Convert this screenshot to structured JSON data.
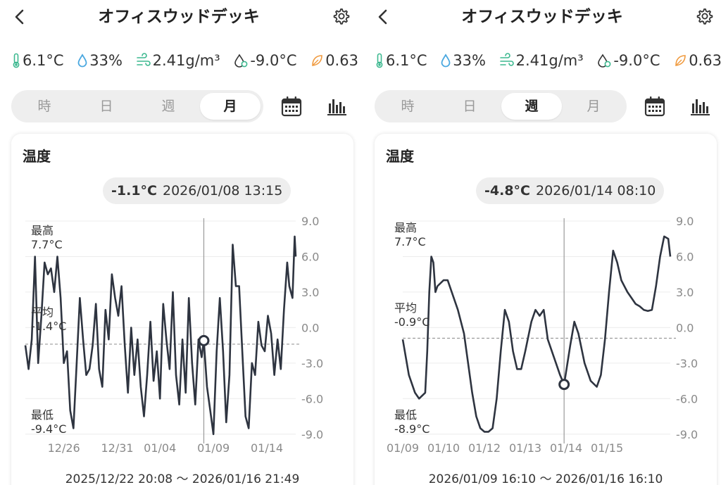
{
  "panels": [
    {
      "header": {
        "back_icon": "chevron-left-icon",
        "title": "オフィスウッドデッキ",
        "settings_icon": "gear-icon"
      },
      "metrics": [
        {
          "icon": "thermometer-icon",
          "color": "#3cb88f",
          "value": "6.1°C"
        },
        {
          "icon": "droplet-icon",
          "color": "#4aa8e0",
          "value": "33%"
        },
        {
          "icon": "humidity-wind-icon",
          "color": "#3cb88f",
          "value": "2.41g/m³"
        },
        {
          "icon": "dewpoint-icon",
          "color": "#333333",
          "value": "-9.0°C"
        },
        {
          "icon": "leaf-icon",
          "color": "#f09a3e",
          "value": "0.63"
        }
      ],
      "tabs": [
        {
          "label": "時",
          "active": false
        },
        {
          "label": "日",
          "active": false
        },
        {
          "label": "週",
          "active": false
        },
        {
          "label": "月",
          "active": true
        }
      ],
      "card": {
        "title": "温度",
        "readout": {
          "value": "-1.1°C",
          "datetime": "2026/01/08 13:15"
        },
        "stats": {
          "max_label": "最高",
          "max_value": "7.7°C",
          "avg_label": "平均",
          "avg_value": "-1.4°C",
          "min_label": "最低",
          "min_value": "-9.4°C"
        },
        "range": "2025/12/22 20:08 〜 2026/01/16 21:49"
      }
    },
    {
      "header": {
        "back_icon": "chevron-left-icon",
        "title": "オフィスウッドデッキ",
        "settings_icon": "gear-icon"
      },
      "metrics": [
        {
          "icon": "thermometer-icon",
          "color": "#3cb88f",
          "value": "6.1°C"
        },
        {
          "icon": "droplet-icon",
          "color": "#4aa8e0",
          "value": "33%"
        },
        {
          "icon": "humidity-wind-icon",
          "color": "#3cb88f",
          "value": "2.41g/m³"
        },
        {
          "icon": "dewpoint-icon",
          "color": "#333333",
          "value": "-9.0°C"
        },
        {
          "icon": "leaf-icon",
          "color": "#f09a3e",
          "value": "0.63"
        }
      ],
      "tabs": [
        {
          "label": "時",
          "active": false
        },
        {
          "label": "日",
          "active": false
        },
        {
          "label": "週",
          "active": true
        },
        {
          "label": "月",
          "active": false
        }
      ],
      "card": {
        "title": "温度",
        "readout": {
          "value": "-4.8°C",
          "datetime": "2026/01/14 08:10"
        },
        "stats": {
          "max_label": "最高",
          "max_value": "7.7°C",
          "avg_label": "平均",
          "avg_value": "-0.9°C",
          "min_label": "最低",
          "min_value": "-8.9°C"
        },
        "range": "2026/01/09 16:10 〜 2026/01/16 16:10"
      }
    }
  ],
  "chart_data": [
    {
      "type": "line",
      "ylabel": "",
      "ylim": [
        -10.5,
        9.0
      ],
      "y_ticks": [
        "9.0",
        "6.0",
        "3.0",
        "0.0",
        "-3.0",
        "-6.0",
        "-9.0"
      ],
      "y_tick_values": [
        9,
        6,
        3,
        0,
        -3,
        -6,
        -9
      ],
      "y_axis_side": "right",
      "x_range": [
        "2025/12/22 20:08",
        "2026/01/16 21:49"
      ],
      "x_ticks": [
        {
          "label": "12/26",
          "t": 3.6
        },
        {
          "label": "12/31",
          "t": 8.6
        },
        {
          "label": "01/04",
          "t": 12.6
        },
        {
          "label": "01/09",
          "t": 17.6
        },
        {
          "label": "01/14",
          "t": 22.6
        }
      ],
      "average": -1.4,
      "marker": {
        "t": 16.7,
        "value": -1.1
      },
      "series": [
        {
          "color": "#2e3440",
          "points": [
            [
              0.0,
              -1.5
            ],
            [
              0.3,
              -3.5
            ],
            [
              0.6,
              -1.0
            ],
            [
              0.9,
              6.0
            ],
            [
              1.2,
              -3.0
            ],
            [
              1.5,
              1.0
            ],
            [
              1.8,
              5.5
            ],
            [
              2.1,
              4.5
            ],
            [
              2.4,
              5.0
            ],
            [
              2.7,
              3.0
            ],
            [
              3.0,
              6.0
            ],
            [
              3.3,
              2.5
            ],
            [
              3.6,
              -3.0
            ],
            [
              3.9,
              -2.0
            ],
            [
              4.2,
              -7.0
            ],
            [
              4.5,
              -8.5
            ],
            [
              4.8,
              -3.0
            ],
            [
              5.1,
              2.5
            ],
            [
              5.4,
              -1.0
            ],
            [
              5.7,
              -4.0
            ],
            [
              6.0,
              -3.5
            ],
            [
              6.3,
              -1.5
            ],
            [
              6.6,
              2.0
            ],
            [
              6.9,
              -3.5
            ],
            [
              7.2,
              -5.0
            ],
            [
              7.5,
              1.5
            ],
            [
              7.8,
              -1.0
            ],
            [
              8.1,
              4.5
            ],
            [
              8.4,
              2.5
            ],
            [
              8.7,
              1.0
            ],
            [
              9.0,
              3.5
            ],
            [
              9.3,
              -1.5
            ],
            [
              9.6,
              -5.5
            ],
            [
              9.9,
              0.0
            ],
            [
              10.2,
              -4.0
            ],
            [
              10.5,
              -1.0
            ],
            [
              10.8,
              -5.0
            ],
            [
              11.1,
              -7.5
            ],
            [
              11.4,
              -4.0
            ],
            [
              11.7,
              0.5
            ],
            [
              12.0,
              -4.5
            ],
            [
              12.3,
              -2.0
            ],
            [
              12.6,
              -6.0
            ],
            [
              12.9,
              2.0
            ],
            [
              13.2,
              -1.0
            ],
            [
              13.5,
              -3.5
            ],
            [
              13.8,
              3.0
            ],
            [
              14.1,
              -4.0
            ],
            [
              14.4,
              -6.5
            ],
            [
              14.7,
              -1.0
            ],
            [
              15.0,
              -5.5
            ],
            [
              15.3,
              2.5
            ],
            [
              15.6,
              -3.0
            ],
            [
              15.9,
              -6.5
            ],
            [
              16.2,
              -1.0
            ],
            [
              16.5,
              -2.5
            ],
            [
              16.7,
              -1.1
            ],
            [
              17.0,
              -5.0
            ],
            [
              17.3,
              -7.0
            ],
            [
              17.6,
              -9.0
            ],
            [
              17.9,
              -2.0
            ],
            [
              18.2,
              2.5
            ],
            [
              18.5,
              -2.0
            ],
            [
              18.8,
              -8.0
            ],
            [
              19.1,
              -4.0
            ],
            [
              19.4,
              7.0
            ],
            [
              19.7,
              3.5
            ],
            [
              20.0,
              3.5
            ],
            [
              20.3,
              -2.0
            ],
            [
              20.6,
              -7.5
            ],
            [
              20.9,
              -8.5
            ],
            [
              21.2,
              -3.0
            ],
            [
              21.5,
              -4.0
            ],
            [
              21.8,
              0.5
            ],
            [
              22.1,
              -1.5
            ],
            [
              22.4,
              -2.0
            ],
            [
              22.7,
              1.0
            ],
            [
              23.0,
              -0.5
            ],
            [
              23.3,
              -4.0
            ],
            [
              23.6,
              -1.0
            ],
            [
              23.9,
              -3.5
            ],
            [
              24.2,
              1.5
            ],
            [
              24.5,
              5.5
            ],
            [
              24.7,
              3.5
            ],
            [
              25.0,
              2.5
            ],
            [
              25.2,
              7.7
            ],
            [
              25.3,
              6.0
            ]
          ]
        }
      ]
    },
    {
      "type": "line",
      "ylabel": "",
      "ylim": [
        -10.5,
        9.0
      ],
      "y_ticks": [
        "9.0",
        "6.0",
        "3.0",
        "0.0",
        "-3.0",
        "-6.0",
        "-9.0"
      ],
      "y_tick_values": [
        9,
        6,
        3,
        0,
        -3,
        -6,
        -9
      ],
      "y_axis_side": "right",
      "x_range": [
        "2026/01/09 16:10",
        "2026/01/16 16:10"
      ],
      "x_ticks": [
        {
          "label": "01/09",
          "t": 0.0
        },
        {
          "label": "01/10",
          "t": 1.0
        },
        {
          "label": "01/12",
          "t": 2.0
        },
        {
          "label": "01/13",
          "t": 3.0
        },
        {
          "label": "01/14",
          "t": 4.0
        },
        {
          "label": "01/15",
          "t": 5.0
        }
      ],
      "average": -0.9,
      "marker": {
        "t": 3.95,
        "value": -4.8
      },
      "series": [
        {
          "color": "#2e3440",
          "points": [
            [
              0.0,
              -1.0
            ],
            [
              0.15,
              -4.0
            ],
            [
              0.3,
              -5.5
            ],
            [
              0.4,
              -6.0
            ],
            [
              0.55,
              -5.5
            ],
            [
              0.6,
              -2.0
            ],
            [
              0.65,
              3.0
            ],
            [
              0.7,
              6.0
            ],
            [
              0.75,
              5.5
            ],
            [
              0.8,
              3.0
            ],
            [
              0.85,
              3.5
            ],
            [
              1.0,
              4.0
            ],
            [
              1.1,
              4.0
            ],
            [
              1.2,
              3.0
            ],
            [
              1.35,
              1.5
            ],
            [
              1.5,
              -0.5
            ],
            [
              1.6,
              -3.0
            ],
            [
              1.7,
              -5.5
            ],
            [
              1.8,
              -7.5
            ],
            [
              1.9,
              -8.5
            ],
            [
              2.0,
              -8.8
            ],
            [
              2.1,
              -8.8
            ],
            [
              2.2,
              -8.5
            ],
            [
              2.3,
              -6.0
            ],
            [
              2.4,
              -2.0
            ],
            [
              2.5,
              1.5
            ],
            [
              2.6,
              0.5
            ],
            [
              2.7,
              -2.0
            ],
            [
              2.8,
              -3.5
            ],
            [
              2.9,
              -3.5
            ],
            [
              3.0,
              -2.0
            ],
            [
              3.15,
              0.5
            ],
            [
              3.25,
              1.5
            ],
            [
              3.35,
              1.0
            ],
            [
              3.45,
              1.5
            ],
            [
              3.55,
              -1.0
            ],
            [
              3.7,
              -2.5
            ],
            [
              3.85,
              -4.0
            ],
            [
              3.95,
              -4.8
            ],
            [
              4.1,
              -1.5
            ],
            [
              4.2,
              0.5
            ],
            [
              4.3,
              -0.5
            ],
            [
              4.45,
              -3.0
            ],
            [
              4.6,
              -4.5
            ],
            [
              4.75,
              -5.0
            ],
            [
              4.85,
              -4.0
            ],
            [
              4.95,
              -1.0
            ],
            [
              5.05,
              3.0
            ],
            [
              5.15,
              6.5
            ],
            [
              5.25,
              5.5
            ],
            [
              5.35,
              4.0
            ],
            [
              5.5,
              3.0
            ],
            [
              5.6,
              2.5
            ],
            [
              5.7,
              2.0
            ],
            [
              5.8,
              1.8
            ],
            [
              5.9,
              1.5
            ],
            [
              6.0,
              1.4
            ],
            [
              6.1,
              1.5
            ],
            [
              6.2,
              3.5
            ],
            [
              6.3,
              6.0
            ],
            [
              6.4,
              7.7
            ],
            [
              6.5,
              7.5
            ],
            [
              6.55,
              6.0
            ]
          ]
        }
      ]
    }
  ]
}
